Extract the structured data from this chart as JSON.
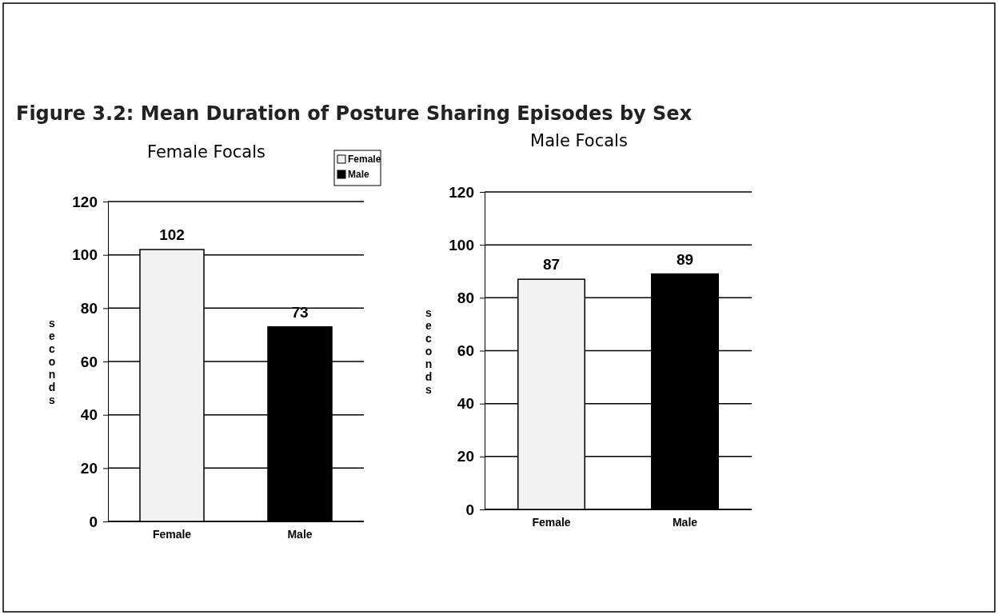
{
  "chart_data": [
    {
      "type": "bar",
      "title": "Figure 3.2:  Mean Duration of Posture Sharing Episodes by Sex",
      "subtitle": "Female Focals",
      "ylabel": "seconds",
      "categories": [
        "Female",
        "Male"
      ],
      "series": [
        {
          "name": "Female",
          "color": "#f2f2f2",
          "values": [
            102,
            null
          ]
        },
        {
          "name": "Male",
          "color": "#000000",
          "values": [
            null,
            73
          ]
        }
      ],
      "ylim": [
        0,
        120
      ],
      "yticks": [
        0,
        20,
        40,
        60,
        80,
        100,
        120
      ],
      "grid": "y",
      "data_labels": true,
      "legend": "top right"
    },
    {
      "type": "bar",
      "subtitle": "Male Focals",
      "ylabel": "seconds",
      "categories": [
        "Female",
        "Male"
      ],
      "series": [
        {
          "color": "#f2f2f2",
          "values": [
            87,
            null
          ]
        },
        {
          "color": "#000000",
          "values": [
            null,
            89
          ]
        }
      ],
      "ylim": [
        0,
        120
      ],
      "yticks": [
        0,
        20,
        40,
        60,
        80,
        100,
        120
      ],
      "grid": "y",
      "data_labels": true
    }
  ]
}
